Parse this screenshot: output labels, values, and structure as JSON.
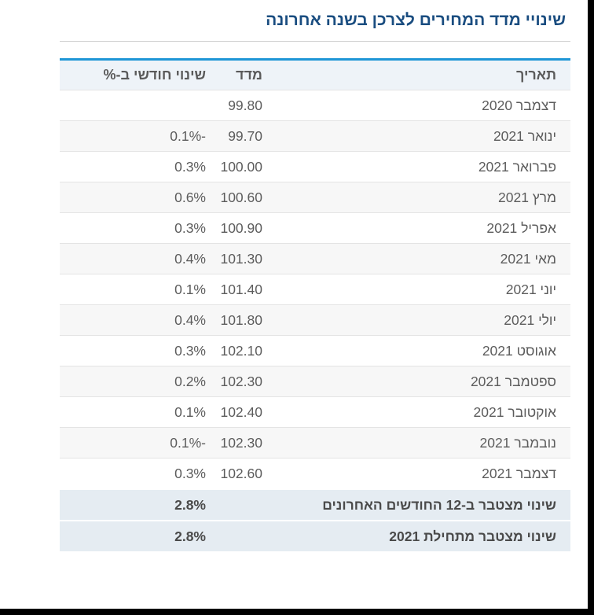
{
  "title": "שינויי מדד המחירים לצרכן בשנה אחרונה",
  "table": {
    "headers": {
      "date": "תאריך",
      "index": "מדד",
      "change": "שינוי חודשי ב-%"
    },
    "rows": [
      {
        "date": "דצמבר 2020",
        "index": "99.80",
        "change": ""
      },
      {
        "date": "ינואר 2021",
        "index": "99.70",
        "change": "-0.1%"
      },
      {
        "date": "פברואר 2021",
        "index": "100.00",
        "change": "0.3%"
      },
      {
        "date": "מרץ 2021",
        "index": "100.60",
        "change": "0.6%"
      },
      {
        "date": "אפריל 2021",
        "index": "100.90",
        "change": "0.3%"
      },
      {
        "date": "מאי 2021",
        "index": "101.30",
        "change": "0.4%"
      },
      {
        "date": "יוני 2021",
        "index": "101.40",
        "change": "0.1%"
      },
      {
        "date": "יולי 2021",
        "index": "101.80",
        "change": "0.4%"
      },
      {
        "date": "אוגוסט 2021",
        "index": "102.10",
        "change": "0.3%"
      },
      {
        "date": "ספטמבר 2021",
        "index": "102.30",
        "change": "0.2%"
      },
      {
        "date": "אוקטובר 2021",
        "index": "102.40",
        "change": "0.1%"
      },
      {
        "date": "נובמבר 2021",
        "index": "102.30",
        "change": "-0.1%"
      },
      {
        "date": "דצמבר 2021",
        "index": "102.60",
        "change": "0.3%"
      }
    ],
    "summary": [
      {
        "label": "שינוי מצטבר ב-12 החודשים האחרונים",
        "value": "2.8%"
      },
      {
        "label": "שינוי מצטבר מתחילת 2021",
        "value": "2.8%"
      }
    ]
  },
  "colors": {
    "title": "#1a4d80",
    "header_rule": "#1e96d6",
    "summary_bg": "#e5ecf2"
  }
}
